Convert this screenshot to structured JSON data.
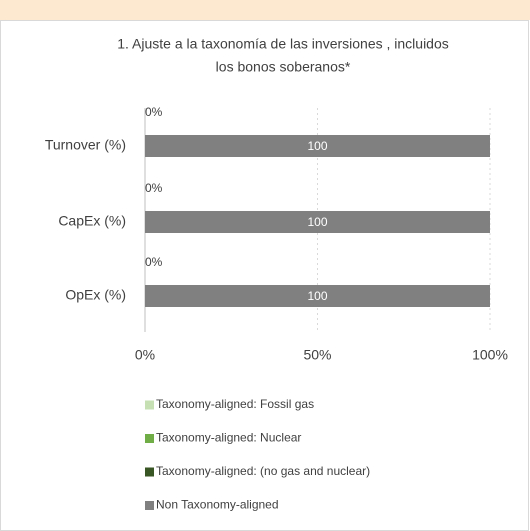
{
  "chart_data": {
    "type": "stacked-barh",
    "title": [
      "1. Ajuste a la taxonomía de las inversiones , incluidos",
      "los bonos soberanos*"
    ],
    "categories": [
      "Turnover (%)",
      "CapEx (%)",
      "OpEx (%)"
    ],
    "series": [
      {
        "name": "Taxonomy-aligned: Fossil gas",
        "color": "#c6e0b4",
        "values": [
          0,
          0,
          0
        ]
      },
      {
        "name": "Taxonomy-aligned: Nuclear",
        "color": "#70ad47",
        "values": [
          0,
          0,
          0
        ]
      },
      {
        "name": "Taxonomy-aligned: (no gas and nuclear)",
        "color": "#375623",
        "values": [
          0,
          0,
          0
        ],
        "value_labels": [
          "0%",
          "0%",
          "0%"
        ]
      },
      {
        "name": "Non Taxonomy-aligned",
        "color": "#808080",
        "values": [
          100,
          100,
          100
        ]
      }
    ],
    "xlim": [
      0,
      100
    ],
    "xticks": [
      {
        "value": 0,
        "label": "0%"
      },
      {
        "value": 50,
        "label": "50%"
      },
      {
        "value": 100,
        "label": "100%"
      }
    ],
    "grid": true
  }
}
